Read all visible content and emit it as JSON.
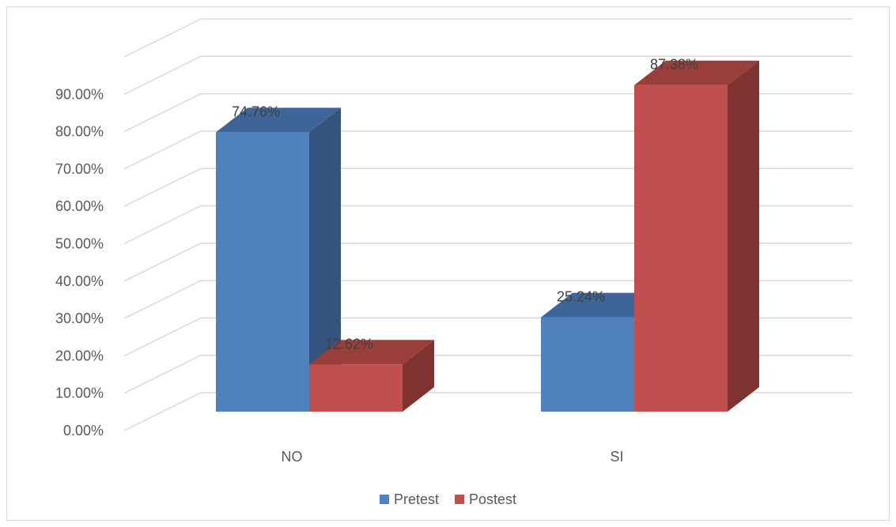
{
  "chart_data": {
    "type": "bar",
    "style": "3d-clustered-column",
    "categories": [
      "NO",
      "SI"
    ],
    "series": [
      {
        "name": "Pretest",
        "values": [
          74.76,
          25.24
        ],
        "labels": [
          "74.76%",
          "25.24%"
        ],
        "color": "#4F81BD",
        "side_color": "#34547E",
        "top_color": "#3E6597"
      },
      {
        "name": "Postest",
        "values": [
          12.62,
          87.38
        ],
        "labels": [
          "12.62%",
          "87.38%"
        ],
        "color": "#C0504D",
        "side_color": "#7F3331",
        "top_color": "#9A3E3B"
      }
    ],
    "ylim": [
      0,
      100
    ],
    "y_ticks": [
      "0.00%",
      "10.00%",
      "20.00%",
      "30.00%",
      "40.00%",
      "50.00%",
      "60.00%",
      "70.00%",
      "80.00%",
      "90.00%"
    ],
    "grid": true,
    "legend_position": "bottom",
    "title": "",
    "xlabel": "",
    "ylabel": ""
  }
}
